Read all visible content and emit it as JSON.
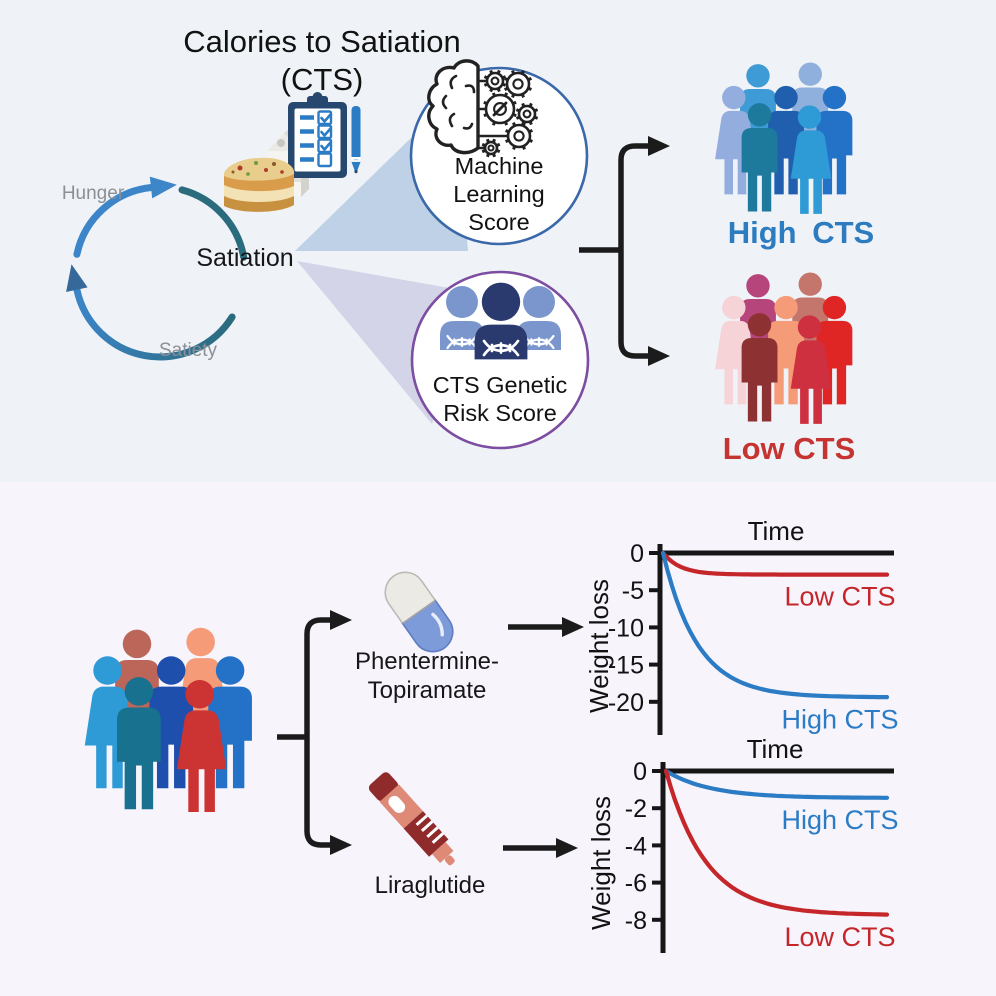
{
  "figure": {
    "title_line1": "Calories to Satiation",
    "title_line2": "(CTS)"
  },
  "cycle": {
    "hunger_label": "Hunger",
    "satiation_label": "Satiation",
    "satiety_label": "Satiety"
  },
  "scores": {
    "machine_learning": {
      "line1": "Machine",
      "line2": "Learning",
      "line3": "Score",
      "border_color": "#3a68a8",
      "icon": "brain-gears-icon"
    },
    "genetic": {
      "line1": "CTS Genetic",
      "line2": "Risk Score",
      "border_color": "#7c4da0",
      "icon": "people-dna-icon"
    }
  },
  "cts_groups": {
    "high": {
      "label": "High CTS",
      "color": "#2e7cc0",
      "people": [
        {
          "type": "male",
          "color": "#3e9bd5"
        },
        {
          "type": "male",
          "color": "#8fb0dc"
        },
        {
          "type": "female",
          "color": "#93aede"
        },
        {
          "type": "male",
          "color": "#1f5fad"
        },
        {
          "type": "male",
          "color": "#2472c8"
        },
        {
          "type": "male",
          "color": "#1d7a9c"
        },
        {
          "type": "female",
          "color": "#2e9ad6"
        }
      ]
    },
    "low": {
      "label": "Low CTS",
      "color": "#c63431",
      "people": [
        {
          "type": "male",
          "color": "#b5457b"
        },
        {
          "type": "male",
          "color": "#c4766c"
        },
        {
          "type": "female",
          "color": "#f5d3d6"
        },
        {
          "type": "male",
          "color": "#f59b78"
        },
        {
          "type": "male",
          "color": "#e02525"
        },
        {
          "type": "male",
          "color": "#8e3133"
        },
        {
          "type": "female",
          "color": "#cf3040"
        }
      ]
    },
    "cohort": {
      "people": [
        {
          "type": "male",
          "color": "#bb6659"
        },
        {
          "type": "female",
          "color": "#f59b78"
        },
        {
          "type": "female",
          "color": "#2e9ad6"
        },
        {
          "type": "male",
          "color": "#1f4fad"
        },
        {
          "type": "male",
          "color": "#2472c8"
        },
        {
          "type": "male",
          "color": "#17718f"
        },
        {
          "type": "female",
          "color": "#cc3333"
        }
      ]
    }
  },
  "treatments": [
    {
      "line1": "Phentermine-",
      "line2": "Topiramate",
      "icon": "pill-capsule-icon"
    },
    {
      "line1": "Liraglutide",
      "icon": "injection-pen-icon"
    }
  ],
  "icons": {
    "clipboard": "meal-checklist-clipboard-icon",
    "pen": "pen-icon",
    "milk": "milk-carton-icon",
    "lasagna": "lasagna-icon",
    "cycle": "hunger-satiety-cycle-icon"
  },
  "chart_data": [
    {
      "type": "line",
      "treatment": "Phentermine-Topiramate",
      "xlabel": "Time",
      "ylabel": "Weight loss",
      "yticks": [
        0,
        -5,
        -10,
        -15,
        -20
      ],
      "ylim": [
        -24.5,
        0
      ],
      "grid": false,
      "series": [
        {
          "name": "Low CTS",
          "color": "#c5262a",
          "final_value": -2.9,
          "decay_rate": 13
        },
        {
          "name": "High CTS",
          "color": "#2b7cc5",
          "final_value": -19.4,
          "decay_rate": 6.5
        }
      ]
    },
    {
      "type": "line",
      "treatment": "Liraglutide",
      "xlabel": "Time",
      "ylabel": "Weight loss",
      "yticks": [
        0,
        -2,
        -4,
        -6,
        -8
      ],
      "ylim": [
        -9.8,
        0
      ],
      "grid": false,
      "series": [
        {
          "name": "High CTS",
          "color": "#2b7cc5",
          "final_value": -1.45,
          "decay_rate": 5
        },
        {
          "name": "Low CTS",
          "color": "#c5262a",
          "final_value": -7.75,
          "decay_rate": 5.5
        }
      ]
    }
  ]
}
